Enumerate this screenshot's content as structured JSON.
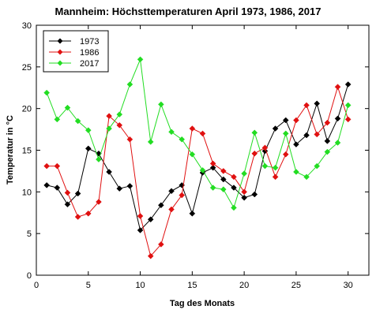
{
  "chart_data": {
    "type": "line",
    "title": "Mannheim: Höchsttemperaturen April 1973, 1986, 2017",
    "xlabel": "Tag des Monats",
    "ylabel": "Temperatur in °C",
    "xlim": [
      0,
      32
    ],
    "ylim": [
      0,
      30
    ],
    "xticks": [
      0,
      5,
      10,
      15,
      20,
      25,
      30
    ],
    "yticks": [
      0,
      5,
      10,
      15,
      20,
      25,
      30
    ],
    "grid": false,
    "legend_position": "top-left",
    "x": [
      1,
      2,
      3,
      4,
      5,
      6,
      7,
      8,
      9,
      10,
      11,
      12,
      13,
      14,
      15,
      16,
      17,
      18,
      19,
      20,
      21,
      22,
      23,
      24,
      25,
      26,
      27,
      28,
      29,
      30
    ],
    "series": [
      {
        "name": "1973",
        "color": "#000000",
        "values": [
          10.8,
          10.5,
          8.5,
          9.8,
          15.2,
          14.6,
          12.4,
          10.4,
          10.7,
          5.4,
          6.7,
          8.4,
          10.1,
          10.8,
          7.4,
          12.3,
          12.9,
          11.5,
          10.5,
          9.3,
          9.7,
          14.9,
          17.6,
          18.6,
          15.7,
          16.8,
          20.6,
          16.1,
          18.8,
          22.9
        ]
      },
      {
        "name": "1986",
        "color": "#e01010",
        "values": [
          13.1,
          13.1,
          9.9,
          7.0,
          7.4,
          8.8,
          19.1,
          18.0,
          16.3,
          7.1,
          2.3,
          3.7,
          7.9,
          9.6,
          17.6,
          17.0,
          13.4,
          12.5,
          11.8,
          10.0,
          14.6,
          15.3,
          11.8,
          14.5,
          18.6,
          20.4,
          16.9,
          18.3,
          22.6,
          18.7
        ]
      },
      {
        "name": "2017",
        "color": "#22dd22",
        "values": [
          21.9,
          18.7,
          20.1,
          18.5,
          17.4,
          13.9,
          17.6,
          19.3,
          22.9,
          25.9,
          16.0,
          20.5,
          17.2,
          16.3,
          14.5,
          12.6,
          10.5,
          10.3,
          8.1,
          12.2,
          17.1,
          13.1,
          12.9,
          17.0,
          12.4,
          11.8,
          13.1,
          14.8,
          15.9,
          20.4
        ]
      }
    ]
  }
}
